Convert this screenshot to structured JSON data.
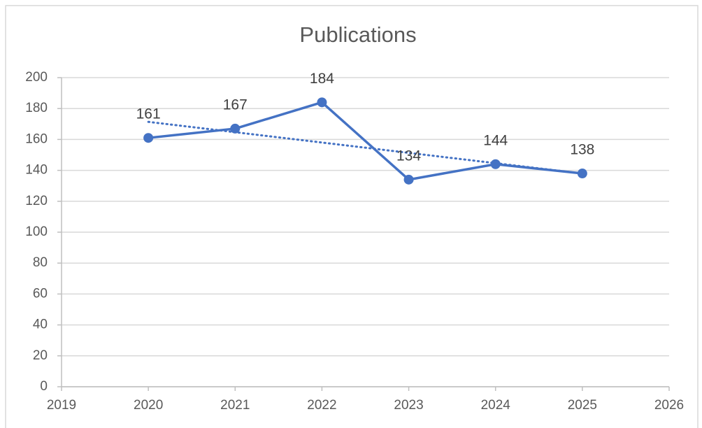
{
  "chart_data": {
    "type": "line",
    "title": "Publications",
    "x": [
      2020,
      2021,
      2022,
      2023,
      2024,
      2025
    ],
    "series": [
      {
        "name": "Publications",
        "color": "#4472c4",
        "values": [
          161,
          167,
          184,
          134,
          144,
          138
        ]
      }
    ],
    "xlim": [
      2019,
      2026
    ],
    "xticks": [
      2019,
      2020,
      2021,
      2022,
      2023,
      2024,
      2025,
      2026
    ],
    "ylim": [
      0,
      200
    ],
    "yticks": [
      0,
      20,
      40,
      60,
      80,
      100,
      120,
      140,
      160,
      180,
      200
    ],
    "grid": true,
    "trendline": "linear",
    "data_labels": true
  }
}
